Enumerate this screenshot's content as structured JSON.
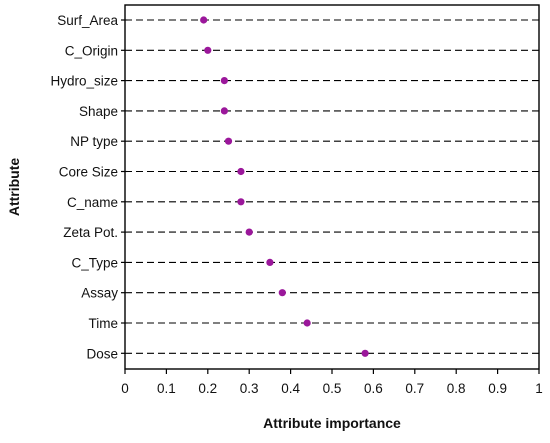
{
  "chart_data": {
    "type": "scatter",
    "subtype": "dot-plot",
    "title": "",
    "xlabel": "Attribute importance",
    "ylabel": "Attribute",
    "xlim": [
      0,
      1
    ],
    "x_ticks": [
      "0",
      "0.1",
      "0.2",
      "0.3",
      "0.4",
      "0.5",
      "0.6",
      "0.7",
      "0.8",
      "0.9",
      "1"
    ],
    "categories": [
      "Surf_Area",
      "C_Origin",
      "Hydro_size",
      "Shape",
      "NP type",
      "Core Size",
      "C_name",
      "Zeta Pot.",
      "C_Type",
      "Assay",
      "Time",
      "Dose"
    ],
    "values": [
      0.19,
      0.2,
      0.24,
      0.24,
      0.25,
      0.28,
      0.28,
      0.3,
      0.35,
      0.38,
      0.44,
      0.58
    ],
    "grid": "horizontal dashed lines per category",
    "legend": "none",
    "marker_color": "#9b179b",
    "gridline_color": "#000000"
  }
}
